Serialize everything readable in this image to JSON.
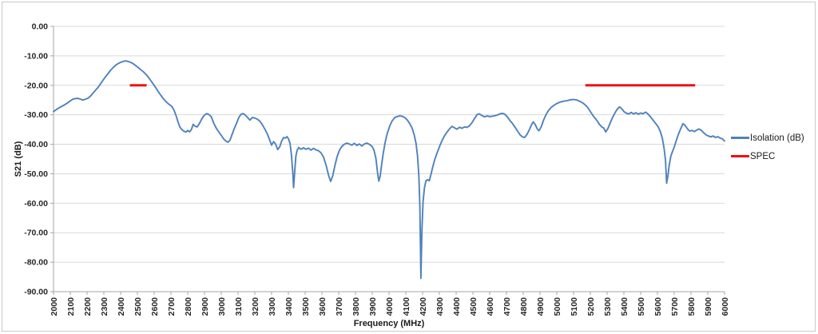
{
  "chart": {
    "legend": [
      {
        "label": "Isolation (dB)",
        "color": "#4F81BD"
      },
      {
        "label": "SPEC",
        "color": "#EE1111"
      }
    ]
  },
  "chart_data": {
    "type": "line",
    "title": "",
    "xlabel": "Frequency (MHz)",
    "ylabel": "S21 (dB)",
    "xlim": [
      2000,
      6000
    ],
    "ylim": [
      -90,
      0
    ],
    "grid": "horizontal gridlines every 10 dB",
    "legend_position": "right",
    "x_ticks": [
      2000,
      2100,
      2200,
      2300,
      2400,
      2500,
      2600,
      2700,
      2800,
      2900,
      3000,
      3100,
      3200,
      3300,
      3400,
      3500,
      3600,
      3700,
      3800,
      3900,
      4000,
      4100,
      4200,
      4300,
      4400,
      4500,
      4600,
      4700,
      4800,
      4900,
      5000,
      5100,
      5200,
      5300,
      5400,
      5500,
      5600,
      5700,
      5800,
      5900,
      6000
    ],
    "y_ticks": [
      {
        "value": 0,
        "label": "0.00"
      },
      {
        "value": -10,
        "label": "-10.00"
      },
      {
        "value": -20,
        "label": "-20.00"
      },
      {
        "value": -30,
        "label": "-30.00"
      },
      {
        "value": -40,
        "label": "-40.00"
      },
      {
        "value": -50,
        "label": "-50.00"
      },
      {
        "value": -60,
        "label": "-60.00"
      },
      {
        "value": -70,
        "label": "-70.00"
      },
      {
        "value": -80,
        "label": "-80.00"
      },
      {
        "value": -90,
        "label": "-90.00"
      }
    ],
    "series": [
      {
        "name": "Isolation (dB)",
        "color": "#4F81BD",
        "style": "line",
        "points": [
          [
            2000,
            -28.9
          ],
          [
            2020,
            -28.1
          ],
          [
            2040,
            -27.4
          ],
          [
            2060,
            -26.8
          ],
          [
            2080,
            -26.1
          ],
          [
            2100,
            -25.3
          ],
          [
            2115,
            -24.7
          ],
          [
            2130,
            -24.5
          ],
          [
            2145,
            -24.4
          ],
          [
            2160,
            -24.7
          ],
          [
            2175,
            -25.0
          ],
          [
            2190,
            -24.7
          ],
          [
            2205,
            -24.4
          ],
          [
            2220,
            -23.7
          ],
          [
            2235,
            -22.7
          ],
          [
            2250,
            -21.7
          ],
          [
            2265,
            -20.7
          ],
          [
            2280,
            -19.5
          ],
          [
            2295,
            -18.3
          ],
          [
            2310,
            -17.1
          ],
          [
            2325,
            -16.0
          ],
          [
            2340,
            -14.9
          ],
          [
            2355,
            -14.0
          ],
          [
            2370,
            -13.2
          ],
          [
            2385,
            -12.6
          ],
          [
            2400,
            -12.2
          ],
          [
            2415,
            -11.9
          ],
          [
            2430,
            -11.7
          ],
          [
            2445,
            -11.9
          ],
          [
            2460,
            -12.2
          ],
          [
            2475,
            -12.7
          ],
          [
            2490,
            -13.3
          ],
          [
            2505,
            -14.0
          ],
          [
            2520,
            -14.7
          ],
          [
            2535,
            -15.4
          ],
          [
            2550,
            -16.2
          ],
          [
            2565,
            -17.2
          ],
          [
            2580,
            -18.4
          ],
          [
            2600,
            -20.0
          ],
          [
            2615,
            -21.3
          ],
          [
            2630,
            -22.6
          ],
          [
            2645,
            -23.8
          ],
          [
            2660,
            -24.9
          ],
          [
            2675,
            -25.8
          ],
          [
            2690,
            -26.5
          ],
          [
            2705,
            -27.1
          ],
          [
            2718,
            -28.4
          ],
          [
            2730,
            -30.2
          ],
          [
            2742,
            -32.4
          ],
          [
            2754,
            -34.2
          ],
          [
            2766,
            -35.1
          ],
          [
            2778,
            -35.6
          ],
          [
            2790,
            -35.9
          ],
          [
            2800,
            -35.3
          ],
          [
            2810,
            -35.8
          ],
          [
            2822,
            -35.0
          ],
          [
            2833,
            -33.2
          ],
          [
            2845,
            -33.9
          ],
          [
            2857,
            -34.1
          ],
          [
            2870,
            -32.9
          ],
          [
            2884,
            -31.4
          ],
          [
            2898,
            -30.2
          ],
          [
            2912,
            -29.6
          ],
          [
            2926,
            -29.9
          ],
          [
            2940,
            -30.6
          ],
          [
            2957,
            -33.1
          ],
          [
            2972,
            -34.7
          ],
          [
            2986,
            -35.9
          ],
          [
            3000,
            -37.0
          ],
          [
            3015,
            -38.2
          ],
          [
            3030,
            -39.0
          ],
          [
            3040,
            -39.3
          ],
          [
            3052,
            -38.6
          ],
          [
            3065,
            -36.6
          ],
          [
            3078,
            -34.6
          ],
          [
            3090,
            -33.0
          ],
          [
            3105,
            -30.9
          ],
          [
            3118,
            -29.8
          ],
          [
            3130,
            -29.6
          ],
          [
            3143,
            -30.1
          ],
          [
            3156,
            -30.9
          ],
          [
            3171,
            -31.8
          ],
          [
            3185,
            -30.9
          ],
          [
            3200,
            -31.1
          ],
          [
            3215,
            -31.5
          ],
          [
            3229,
            -32.1
          ],
          [
            3245,
            -33.4
          ],
          [
            3260,
            -34.9
          ],
          [
            3275,
            -36.6
          ],
          [
            3290,
            -38.8
          ],
          [
            3300,
            -40.3
          ],
          [
            3312,
            -39.1
          ],
          [
            3324,
            -39.9
          ],
          [
            3336,
            -41.8
          ],
          [
            3348,
            -40.9
          ],
          [
            3360,
            -38.9
          ],
          [
            3372,
            -37.7
          ],
          [
            3382,
            -37.9
          ],
          [
            3392,
            -37.4
          ],
          [
            3402,
            -38.3
          ],
          [
            3410,
            -39.8
          ],
          [
            3418,
            -43.5
          ],
          [
            3426,
            -49.5
          ],
          [
            3431,
            -54.7
          ],
          [
            3438,
            -49.0
          ],
          [
            3445,
            -44.0
          ],
          [
            3453,
            -41.9
          ],
          [
            3462,
            -41.1
          ],
          [
            3475,
            -41.7
          ],
          [
            3490,
            -41.2
          ],
          [
            3505,
            -41.7
          ],
          [
            3520,
            -41.3
          ],
          [
            3535,
            -42.0
          ],
          [
            3550,
            -41.4
          ],
          [
            3565,
            -41.9
          ],
          [
            3580,
            -42.2
          ],
          [
            3595,
            -42.9
          ],
          [
            3610,
            -44.4
          ],
          [
            3625,
            -47.2
          ],
          [
            3640,
            -50.6
          ],
          [
            3652,
            -52.6
          ],
          [
            3664,
            -50.8
          ],
          [
            3677,
            -47.3
          ],
          [
            3690,
            -44.3
          ],
          [
            3704,
            -42.1
          ],
          [
            3718,
            -40.8
          ],
          [
            3733,
            -40.0
          ],
          [
            3748,
            -39.6
          ],
          [
            3763,
            -39.9
          ],
          [
            3778,
            -40.3
          ],
          [
            3793,
            -39.7
          ],
          [
            3808,
            -40.4
          ],
          [
            3823,
            -39.9
          ],
          [
            3838,
            -40.6
          ],
          [
            3853,
            -39.9
          ],
          [
            3868,
            -39.6
          ],
          [
            3883,
            -40.0
          ],
          [
            3898,
            -40.7
          ],
          [
            3910,
            -41.9
          ],
          [
            3922,
            -44.8
          ],
          [
            3931,
            -49.3
          ],
          [
            3939,
            -52.5
          ],
          [
            3947,
            -50.8
          ],
          [
            3956,
            -46.8
          ],
          [
            3966,
            -42.8
          ],
          [
            3977,
            -39.3
          ],
          [
            3989,
            -36.4
          ],
          [
            4003,
            -34.0
          ],
          [
            4018,
            -32.1
          ],
          [
            4033,
            -31.0
          ],
          [
            4048,
            -30.6
          ],
          [
            4063,
            -30.4
          ],
          [
            4078,
            -30.5
          ],
          [
            4093,
            -30.9
          ],
          [
            4108,
            -31.7
          ],
          [
            4123,
            -32.9
          ],
          [
            4138,
            -34.6
          ],
          [
            4150,
            -36.8
          ],
          [
            4161,
            -39.7
          ],
          [
            4170,
            -44.0
          ],
          [
            4178,
            -51.0
          ],
          [
            4184,
            -61.0
          ],
          [
            4190,
            -85.5
          ],
          [
            4196,
            -69.0
          ],
          [
            4203,
            -59.5
          ],
          [
            4211,
            -54.8
          ],
          [
            4220,
            -52.4
          ],
          [
            4230,
            -52.0
          ],
          [
            4240,
            -52.4
          ],
          [
            4250,
            -50.2
          ],
          [
            4261,
            -47.6
          ],
          [
            4273,
            -45.1
          ],
          [
            4286,
            -43.0
          ],
          [
            4300,
            -40.9
          ],
          [
            4315,
            -38.9
          ],
          [
            4330,
            -37.2
          ],
          [
            4345,
            -35.9
          ],
          [
            4360,
            -34.8
          ],
          [
            4375,
            -33.9
          ],
          [
            4390,
            -34.4
          ],
          [
            4405,
            -34.9
          ],
          [
            4420,
            -34.2
          ],
          [
            4435,
            -34.6
          ],
          [
            4450,
            -34.1
          ],
          [
            4465,
            -34.3
          ],
          [
            4480,
            -33.7
          ],
          [
            4495,
            -32.6
          ],
          [
            4510,
            -31.2
          ],
          [
            4525,
            -29.9
          ],
          [
            4540,
            -29.7
          ],
          [
            4555,
            -30.3
          ],
          [
            4570,
            -30.7
          ],
          [
            4585,
            -30.4
          ],
          [
            4600,
            -30.6
          ],
          [
            4615,
            -30.5
          ],
          [
            4630,
            -30.3
          ],
          [
            4645,
            -30.1
          ],
          [
            4660,
            -29.7
          ],
          [
            4675,
            -29.5
          ],
          [
            4690,
            -29.8
          ],
          [
            4705,
            -30.7
          ],
          [
            4720,
            -31.9
          ],
          [
            4735,
            -32.9
          ],
          [
            4750,
            -34.1
          ],
          [
            4765,
            -35.4
          ],
          [
            4780,
            -36.7
          ],
          [
            4795,
            -37.5
          ],
          [
            4808,
            -37.7
          ],
          [
            4822,
            -36.7
          ],
          [
            4836,
            -35.1
          ],
          [
            4850,
            -33.3
          ],
          [
            4860,
            -32.4
          ],
          [
            4872,
            -33.4
          ],
          [
            4884,
            -34.8
          ],
          [
            4894,
            -35.4
          ],
          [
            4906,
            -34.2
          ],
          [
            4920,
            -32.0
          ],
          [
            4935,
            -30.0
          ],
          [
            4950,
            -28.6
          ],
          [
            4965,
            -27.6
          ],
          [
            4982,
            -26.8
          ],
          [
            5000,
            -26.2
          ],
          [
            5020,
            -25.7
          ],
          [
            5040,
            -25.4
          ],
          [
            5060,
            -25.2
          ],
          [
            5080,
            -24.9
          ],
          [
            5100,
            -24.8
          ],
          [
            5120,
            -25.0
          ],
          [
            5140,
            -25.5
          ],
          [
            5160,
            -26.2
          ],
          [
            5180,
            -27.2
          ],
          [
            5200,
            -28.9
          ],
          [
            5220,
            -30.6
          ],
          [
            5240,
            -32.0
          ],
          [
            5255,
            -33.3
          ],
          [
            5268,
            -34.1
          ],
          [
            5280,
            -34.5
          ],
          [
            5292,
            -35.8
          ],
          [
            5305,
            -34.6
          ],
          [
            5318,
            -32.8
          ],
          [
            5332,
            -31.0
          ],
          [
            5346,
            -29.4
          ],
          [
            5360,
            -28.1
          ],
          [
            5374,
            -27.3
          ],
          [
            5388,
            -28.0
          ],
          [
            5402,
            -29.0
          ],
          [
            5416,
            -29.5
          ],
          [
            5430,
            -29.7
          ],
          [
            5444,
            -29.2
          ],
          [
            5458,
            -29.7
          ],
          [
            5472,
            -29.3
          ],
          [
            5486,
            -29.8
          ],
          [
            5500,
            -29.4
          ],
          [
            5515,
            -29.6
          ],
          [
            5530,
            -29.1
          ],
          [
            5545,
            -29.8
          ],
          [
            5560,
            -30.8
          ],
          [
            5575,
            -31.9
          ],
          [
            5590,
            -33.0
          ],
          [
            5604,
            -34.0
          ],
          [
            5618,
            -35.8
          ],
          [
            5630,
            -38.2
          ],
          [
            5640,
            -41.5
          ],
          [
            5648,
            -45.5
          ],
          [
            5655,
            -53.2
          ],
          [
            5662,
            -51.0
          ],
          [
            5670,
            -47.2
          ],
          [
            5680,
            -44.0
          ],
          [
            5690,
            -42.4
          ],
          [
            5700,
            -41.0
          ],
          [
            5712,
            -38.8
          ],
          [
            5725,
            -36.6
          ],
          [
            5738,
            -34.8
          ],
          [
            5752,
            -33.0
          ],
          [
            5765,
            -33.6
          ],
          [
            5778,
            -34.7
          ],
          [
            5792,
            -35.5
          ],
          [
            5806,
            -35.3
          ],
          [
            5820,
            -35.7
          ],
          [
            5834,
            -35.2
          ],
          [
            5848,
            -34.8
          ],
          [
            5862,
            -35.3
          ],
          [
            5876,
            -36.1
          ],
          [
            5890,
            -36.8
          ],
          [
            5904,
            -37.2
          ],
          [
            5918,
            -37.5
          ],
          [
            5932,
            -37.2
          ],
          [
            5946,
            -37.7
          ],
          [
            5960,
            -37.4
          ],
          [
            5974,
            -37.9
          ],
          [
            5988,
            -38.2
          ],
          [
            6000,
            -38.9
          ]
        ]
      },
      {
        "name": "SPEC",
        "color": "#EE1111",
        "style": "horizontal-segments",
        "level_db": -20,
        "segments_mhz": [
          [
            2455,
            2555
          ],
          [
            5170,
            5825
          ]
        ]
      }
    ]
  }
}
